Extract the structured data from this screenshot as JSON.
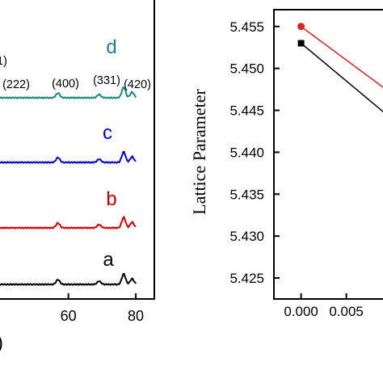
{
  "chart_data": [
    {
      "type": "line",
      "title": "",
      "xlabel_fragment": ")",
      "x_ticks": [
        "60",
        "80"
      ],
      "xlim": [
        38.5,
        85.5
      ],
      "curve_labels": [
        {
          "label": "a",
          "color": "#000000"
        },
        {
          "label": "b",
          "color": "#cc0000"
        },
        {
          "label": "c",
          "color": "#0000cc"
        },
        {
          "label": "d",
          "color": "#1a8a80"
        }
      ],
      "peak_labels": [
        "1)",
        "(222)",
        "(400)",
        "(331)",
        "(420)"
      ],
      "peaks_2theta": [
        56.9,
        69.1,
        76.4,
        78.9
      ],
      "colors": {
        "a": "#000000",
        "b": "#cc0000",
        "c": "#0000cc",
        "d": "#1a8a80"
      }
    },
    {
      "type": "line",
      "title": "",
      "xlabel": "",
      "ylabel": "Lattice Parameter",
      "ylim": [
        5.4225,
        5.457
      ],
      "y_ticks": [
        "5.455",
        "5.450",
        "5.445",
        "5.440",
        "5.435",
        "5.430",
        "5.425"
      ],
      "x_ticks": [
        "0.000",
        "0.005"
      ],
      "xlim": [
        -0.003,
        0.0095
      ],
      "series": [
        {
          "color": "#e32020",
          "marker": "circle",
          "x": [
            0.0,
            0.01
          ],
          "y": [
            5.455,
            5.447
          ]
        },
        {
          "color": "#000000",
          "marker": "square",
          "x": [
            0.0,
            0.01
          ],
          "y": [
            5.453,
            5.444
          ]
        }
      ]
    }
  ]
}
